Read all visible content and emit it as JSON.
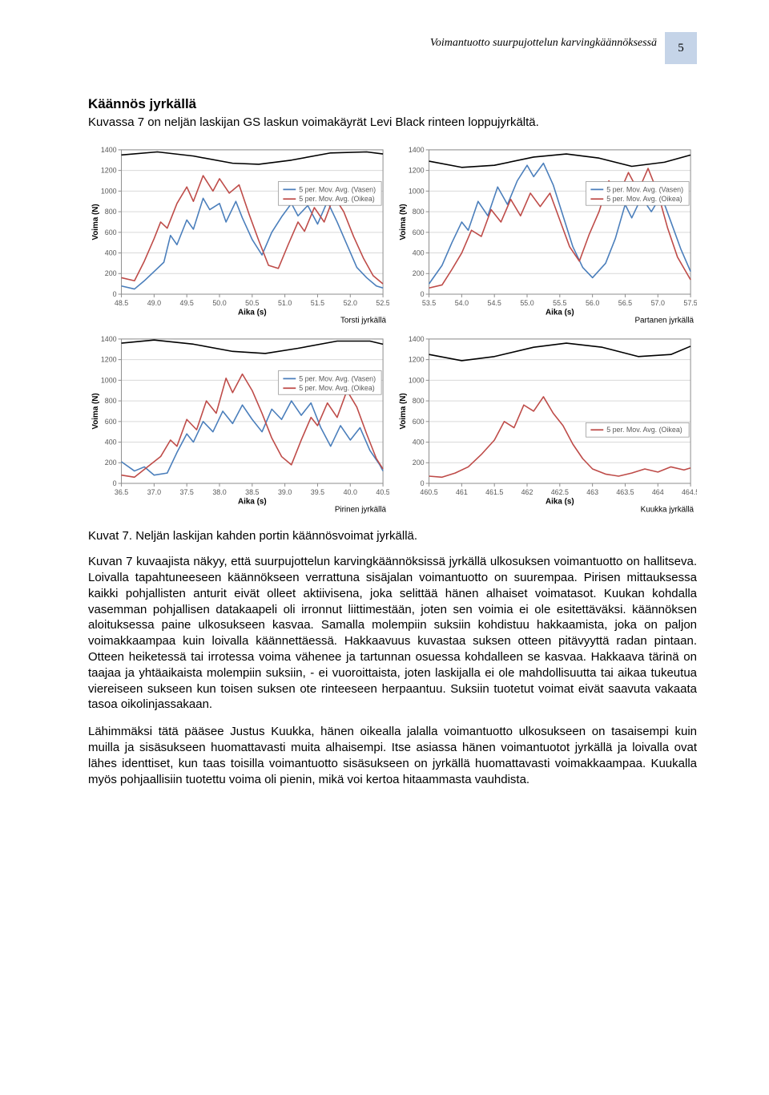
{
  "header": {
    "running_title": "Voimantuotto suurpujottelun karvingkäännöksessä",
    "page_number": "5",
    "badge_bg": "#c5d4e8"
  },
  "section_heading": "Käännös jyrkällä",
  "intro_text": "Kuvassa 7 on neljän laskijan GS laskun voimakäyrät Levi Black rinteen loppujyrkältä.",
  "figure_caption": "Kuvat 7. Neljän laskijan kahden portin käännösvoimat jyrkällä.",
  "paragraph_1": "Kuvan 7 kuvaajista näkyy, että suurpujottelun karvingkäännöksissä jyrkällä ulkosuksen voimantuotto on hallitseva. Loivalla tapahtuneeseen käännökseen verrattuna sisäjalan voimantuotto on suurempaa. Pirisen mittauksessa kaikki pohjallisten anturit eivät olleet aktiivisena, joka selittää hänen alhaiset voimatasot. Kuukan kohdalla vasemman pohjallisen datakaapeli oli irronnut liittimestään, joten sen voimia ei ole esitettäväksi. käännöksen aloituksessa paine ulkosukseen kasvaa. Samalla molempiin suksiin kohdistuu hakkaamista, joka on paljon voimakkaampaa kuin loivalla käännettäessä. Hakkaavuus kuvastaa suksen otteen pitävyyttä radan pintaan. Otteen heiketessä tai irrotessa voima vähenee ja tartunnan osuessa kohdalleen se kasvaa. Hakkaava tärinä on taajaa ja yhtäaikaista molempiin suksiin, - ei vuoroittaista, joten laskijalla ei ole mahdollisuutta tai aikaa tukeutua viereiseen sukseen kun toisen suksen ote rinteeseen herpaantuu. Suksiin tuotetut voimat eivät saavuta vakaata tasoa oikolinjassakaan.",
  "paragraph_2": "Lähimmäksi tätä pääsee Justus Kuukka, hänen oikealla jalalla voimantuotto ulkosukseen on tasaisempi kuin muilla ja sisäsukseen huomattavasti muita alhaisempi. Itse asiassa hänen voimantuotot jyrkällä ja loivalla ovat lähes identtiset, kun taas toisilla voimantuotto sisäsukseen on jyrkällä huomattavasti voimakkaampaa. Kuukalla myös pohjaallisiin tuotettu voima oli pienin, mikä voi kertoa hitaammasta vauhdista.",
  "charts": [
    {
      "id": "torsti",
      "caption": "Torsti jyrkällä",
      "xlabel": "Aika (s)",
      "ylabel": "Voima (N)",
      "xlim": [
        48.5,
        52.5
      ],
      "xticks": [
        48.5,
        49.0,
        49.5,
        50.0,
        50.5,
        51.0,
        51.5,
        52.0,
        52.5
      ],
      "ylim": [
        0,
        1400
      ],
      "yticks": [
        0,
        200,
        400,
        600,
        800,
        1000,
        1200,
        1400
      ],
      "legend": [
        "5 per. Mov. Avg. (Vasen)",
        "5 per. Mov. Avg. (Oikea)"
      ],
      "colors": {
        "vasen": "#4a7ebb",
        "oikea": "#be4b48",
        "smooth": "#000000",
        "grid": "#d9d9d9",
        "axis": "#8c8c8c"
      },
      "line_width": 1.6,
      "smooth": [
        [
          48.5,
          1350
        ],
        [
          49.05,
          1380
        ],
        [
          49.6,
          1340
        ],
        [
          50.2,
          1270
        ],
        [
          50.6,
          1260
        ],
        [
          51.1,
          1300
        ],
        [
          51.7,
          1370
        ],
        [
          52.25,
          1380
        ],
        [
          52.5,
          1360
        ]
      ],
      "vasen": [
        [
          48.5,
          80
        ],
        [
          48.7,
          50
        ],
        [
          48.85,
          130
        ],
        [
          49.0,
          220
        ],
        [
          49.15,
          310
        ],
        [
          49.25,
          570
        ],
        [
          49.35,
          480
        ],
        [
          49.5,
          720
        ],
        [
          49.6,
          630
        ],
        [
          49.75,
          930
        ],
        [
          49.85,
          820
        ],
        [
          50.0,
          880
        ],
        [
          50.1,
          700
        ],
        [
          50.25,
          900
        ],
        [
          50.35,
          740
        ],
        [
          50.5,
          530
        ],
        [
          50.65,
          380
        ],
        [
          50.8,
          600
        ],
        [
          50.95,
          750
        ],
        [
          51.1,
          880
        ],
        [
          51.2,
          760
        ],
        [
          51.35,
          860
        ],
        [
          51.5,
          680
        ],
        [
          51.65,
          900
        ],
        [
          51.8,
          700
        ],
        [
          51.95,
          480
        ],
        [
          52.1,
          260
        ],
        [
          52.25,
          160
        ],
        [
          52.4,
          80
        ],
        [
          52.5,
          60
        ]
      ],
      "oikea": [
        [
          48.5,
          160
        ],
        [
          48.7,
          130
        ],
        [
          48.85,
          320
        ],
        [
          49.0,
          540
        ],
        [
          49.1,
          700
        ],
        [
          49.2,
          640
        ],
        [
          49.35,
          880
        ],
        [
          49.5,
          1040
        ],
        [
          49.6,
          900
        ],
        [
          49.75,
          1150
        ],
        [
          49.9,
          1000
        ],
        [
          50.0,
          1120
        ],
        [
          50.15,
          980
        ],
        [
          50.3,
          1060
        ],
        [
          50.45,
          780
        ],
        [
          50.6,
          520
        ],
        [
          50.75,
          280
        ],
        [
          50.9,
          250
        ],
        [
          51.05,
          480
        ],
        [
          51.2,
          700
        ],
        [
          51.3,
          610
        ],
        [
          51.45,
          840
        ],
        [
          51.6,
          700
        ],
        [
          51.75,
          950
        ],
        [
          51.9,
          800
        ],
        [
          52.05,
          560
        ],
        [
          52.2,
          350
        ],
        [
          52.35,
          180
        ],
        [
          52.5,
          100
        ]
      ]
    },
    {
      "id": "partanen",
      "caption": "Partanen jyrkällä",
      "xlabel": "Aika (s)",
      "ylabel": "Voima (N)",
      "xlim": [
        53.5,
        57.5
      ],
      "xticks": [
        53.5,
        54.0,
        54.5,
        55.0,
        55.5,
        56.0,
        56.5,
        57.0,
        57.5
      ],
      "ylim": [
        0,
        1400
      ],
      "yticks": [
        0,
        200,
        400,
        600,
        800,
        1000,
        1200,
        1400
      ],
      "legend": [
        "5 per. Mov. Avg. (Vasen)",
        "5 per. Mov. Avg. (Oikea)"
      ],
      "colors": {
        "vasen": "#4a7ebb",
        "oikea": "#be4b48",
        "smooth": "#000000",
        "grid": "#d9d9d9",
        "axis": "#8c8c8c"
      },
      "line_width": 1.6,
      "smooth": [
        [
          53.5,
          1290
        ],
        [
          54.0,
          1230
        ],
        [
          54.5,
          1250
        ],
        [
          55.1,
          1330
        ],
        [
          55.6,
          1360
        ],
        [
          56.1,
          1320
        ],
        [
          56.6,
          1240
        ],
        [
          57.1,
          1280
        ],
        [
          57.5,
          1350
        ]
      ],
      "vasen": [
        [
          53.5,
          100
        ],
        [
          53.7,
          280
        ],
        [
          53.85,
          500
        ],
        [
          54.0,
          700
        ],
        [
          54.1,
          620
        ],
        [
          54.25,
          900
        ],
        [
          54.4,
          760
        ],
        [
          54.55,
          1040
        ],
        [
          54.7,
          870
        ],
        [
          54.85,
          1100
        ],
        [
          55.0,
          1250
        ],
        [
          55.1,
          1140
        ],
        [
          55.25,
          1270
        ],
        [
          55.4,
          1060
        ],
        [
          55.55,
          760
        ],
        [
          55.7,
          460
        ],
        [
          55.85,
          260
        ],
        [
          56.0,
          160
        ],
        [
          56.2,
          300
        ],
        [
          56.35,
          540
        ],
        [
          56.5,
          870
        ],
        [
          56.6,
          740
        ],
        [
          56.75,
          940
        ],
        [
          56.9,
          800
        ],
        [
          57.05,
          960
        ],
        [
          57.2,
          700
        ],
        [
          57.35,
          440
        ],
        [
          57.5,
          220
        ]
      ],
      "oikea": [
        [
          53.5,
          60
        ],
        [
          53.7,
          90
        ],
        [
          53.85,
          240
        ],
        [
          54.0,
          400
        ],
        [
          54.15,
          620
        ],
        [
          54.3,
          560
        ],
        [
          54.45,
          820
        ],
        [
          54.6,
          700
        ],
        [
          54.75,
          920
        ],
        [
          54.9,
          760
        ],
        [
          55.05,
          980
        ],
        [
          55.2,
          850
        ],
        [
          55.35,
          980
        ],
        [
          55.5,
          720
        ],
        [
          55.65,
          460
        ],
        [
          55.8,
          320
        ],
        [
          55.95,
          580
        ],
        [
          56.1,
          800
        ],
        [
          56.25,
          1100
        ],
        [
          56.4,
          960
        ],
        [
          56.55,
          1180
        ],
        [
          56.7,
          1000
        ],
        [
          56.85,
          1220
        ],
        [
          57.0,
          980
        ],
        [
          57.15,
          640
        ],
        [
          57.3,
          360
        ],
        [
          57.5,
          140
        ]
      ]
    },
    {
      "id": "pirinen",
      "caption": "Pirinen jyrkällä",
      "xlabel": "Aika (s)",
      "ylabel": "Voima (N)",
      "xlim": [
        36.5,
        40.5
      ],
      "xticks": [
        36.5,
        37.0,
        37.5,
        38.0,
        38.5,
        39.0,
        39.5,
        40.0,
        40.5
      ],
      "ylim": [
        0,
        1400
      ],
      "yticks": [
        0,
        200,
        400,
        600,
        800,
        1000,
        1200,
        1400
      ],
      "legend": [
        "5 per. Mov. Avg. (Vasen)",
        "5 per. Mov. Avg. (Oikea)"
      ],
      "colors": {
        "vasen": "#4a7ebb",
        "oikea": "#be4b48",
        "smooth": "#000000",
        "grid": "#d9d9d9",
        "axis": "#8c8c8c"
      },
      "line_width": 1.6,
      "smooth": [
        [
          36.5,
          1360
        ],
        [
          37.0,
          1390
        ],
        [
          37.6,
          1350
        ],
        [
          38.2,
          1280
        ],
        [
          38.7,
          1260
        ],
        [
          39.2,
          1310
        ],
        [
          39.8,
          1380
        ],
        [
          40.3,
          1380
        ],
        [
          40.5,
          1350
        ]
      ],
      "vasen": [
        [
          36.5,
          210
        ],
        [
          36.7,
          120
        ],
        [
          36.85,
          160
        ],
        [
          37.0,
          80
        ],
        [
          37.2,
          100
        ],
        [
          37.35,
          300
        ],
        [
          37.5,
          480
        ],
        [
          37.6,
          400
        ],
        [
          37.75,
          600
        ],
        [
          37.9,
          500
        ],
        [
          38.05,
          700
        ],
        [
          38.2,
          580
        ],
        [
          38.35,
          760
        ],
        [
          38.5,
          620
        ],
        [
          38.65,
          500
        ],
        [
          38.8,
          720
        ],
        [
          38.95,
          620
        ],
        [
          39.1,
          800
        ],
        [
          39.25,
          660
        ],
        [
          39.4,
          780
        ],
        [
          39.55,
          540
        ],
        [
          39.7,
          360
        ],
        [
          39.85,
          560
        ],
        [
          40.0,
          420
        ],
        [
          40.15,
          540
        ],
        [
          40.3,
          320
        ],
        [
          40.45,
          180
        ],
        [
          40.5,
          120
        ]
      ],
      "oikea": [
        [
          36.5,
          80
        ],
        [
          36.7,
          60
        ],
        [
          36.9,
          160
        ],
        [
          37.1,
          260
        ],
        [
          37.25,
          420
        ],
        [
          37.35,
          360
        ],
        [
          37.5,
          620
        ],
        [
          37.65,
          520
        ],
        [
          37.8,
          800
        ],
        [
          37.95,
          680
        ],
        [
          38.1,
          1020
        ],
        [
          38.2,
          880
        ],
        [
          38.35,
          1060
        ],
        [
          38.5,
          900
        ],
        [
          38.65,
          680
        ],
        [
          38.8,
          440
        ],
        [
          38.95,
          260
        ],
        [
          39.1,
          180
        ],
        [
          39.25,
          420
        ],
        [
          39.4,
          640
        ],
        [
          39.5,
          560
        ],
        [
          39.65,
          780
        ],
        [
          39.8,
          640
        ],
        [
          39.95,
          900
        ],
        [
          40.1,
          740
        ],
        [
          40.25,
          480
        ],
        [
          40.4,
          240
        ],
        [
          40.5,
          140
        ]
      ]
    },
    {
      "id": "kuukka",
      "caption": "Kuukka jyrkällä",
      "xlabel": "Aika (s)",
      "ylabel": "Voima (N)",
      "xlim": [
        460.5,
        464.5
      ],
      "xticks": [
        460.5,
        461,
        461.5,
        462,
        462.5,
        463,
        463.5,
        464,
        464.5
      ],
      "ylim": [
        0,
        1400
      ],
      "yticks": [
        0,
        200,
        400,
        600,
        800,
        1000,
        1200,
        1400
      ],
      "legend_single": "5 per. Mov. Avg. (Oikea)",
      "colors": {
        "vasen": "#4a7ebb",
        "oikea": "#be4b48",
        "smooth": "#000000",
        "grid": "#d9d9d9",
        "axis": "#8c8c8c"
      },
      "line_width": 1.6,
      "smooth": [
        [
          460.5,
          1250
        ],
        [
          461.0,
          1190
        ],
        [
          461.5,
          1230
        ],
        [
          462.1,
          1320
        ],
        [
          462.6,
          1360
        ],
        [
          463.15,
          1320
        ],
        [
          463.7,
          1230
        ],
        [
          464.2,
          1250
        ],
        [
          464.5,
          1330
        ]
      ],
      "oikea": [
        [
          460.5,
          70
        ],
        [
          460.7,
          60
        ],
        [
          460.9,
          100
        ],
        [
          461.1,
          160
        ],
        [
          461.3,
          280
        ],
        [
          461.5,
          420
        ],
        [
          461.65,
          600
        ],
        [
          461.8,
          540
        ],
        [
          461.95,
          760
        ],
        [
          462.1,
          700
        ],
        [
          462.25,
          840
        ],
        [
          462.4,
          680
        ],
        [
          462.55,
          560
        ],
        [
          462.7,
          380
        ],
        [
          462.85,
          240
        ],
        [
          463.0,
          140
        ],
        [
          463.2,
          90
        ],
        [
          463.4,
          70
        ],
        [
          463.6,
          100
        ],
        [
          463.8,
          140
        ],
        [
          464.0,
          110
        ],
        [
          464.2,
          160
        ],
        [
          464.4,
          130
        ],
        [
          464.5,
          150
        ]
      ]
    }
  ]
}
